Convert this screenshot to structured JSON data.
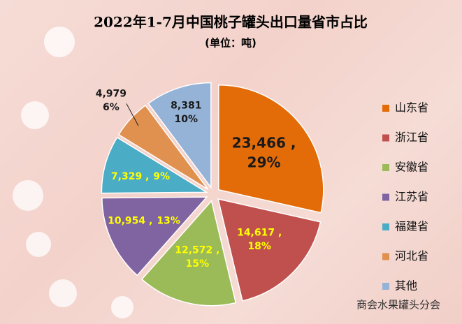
{
  "chart_data": {
    "type": "pie",
    "title": "2022年1-7月中国桃子罐头出口量省市占比",
    "subtitle": "(单位：吨)",
    "categories": [
      "山东省",
      "浙江省",
      "安徽省",
      "江苏省",
      "福建省",
      "河北省",
      "其他"
    ],
    "values": [
      23466,
      14617,
      12572,
      10954,
      7329,
      4979,
      8381
    ],
    "value_labels": [
      "23,466 ,",
      "14,617 ,",
      "12,572 ,",
      "10,954 ,",
      "7,329 ,",
      "4,979",
      "8,381"
    ],
    "percents": [
      29,
      18,
      15,
      13,
      9,
      6,
      10
    ],
    "percent_labels": [
      "29%",
      "18%",
      "15%",
      "13%",
      "9%",
      "6%",
      "10%"
    ],
    "colors": [
      "#e36c09",
      "#c0504d",
      "#9bbb59",
      "#8064a2",
      "#4bacc6",
      "#e0904f",
      "#95b3d7"
    ],
    "legend": "right",
    "watermark": "商会水果罐头分会"
  }
}
